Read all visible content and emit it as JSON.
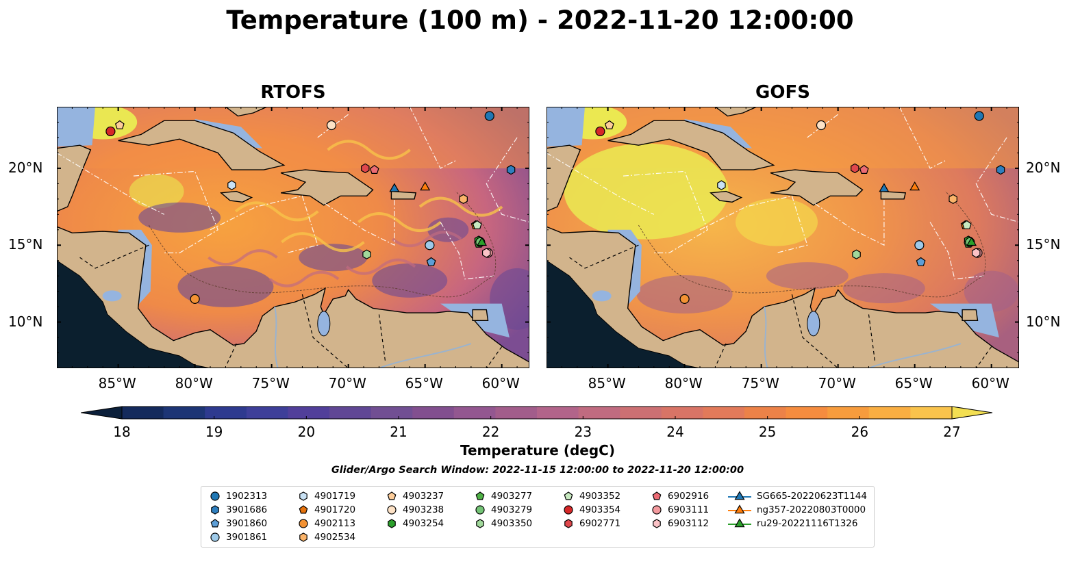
{
  "title": "Temperature (100 m) - 2022-11-20 12:00:00",
  "panels": [
    {
      "name": "RTOFS"
    },
    {
      "name": "GOFS"
    }
  ],
  "axes": {
    "lon_ticks": [
      "85°W",
      "80°W",
      "75°W",
      "70°W",
      "65°W",
      "60°W"
    ],
    "lon_values": [
      -85,
      -80,
      -75,
      -70,
      -65,
      -60
    ],
    "lat_ticks": [
      "20°N",
      "15°N",
      "10°N"
    ],
    "lat_values": [
      20,
      15,
      10
    ],
    "lon_range": [
      -89,
      -58.2
    ],
    "lat_range": [
      7,
      24
    ]
  },
  "colorbar": {
    "label": "Temperature (degC)",
    "ticks": [
      "18",
      "19",
      "20",
      "21",
      "22",
      "23",
      "24",
      "25",
      "26",
      "27"
    ],
    "range": [
      18,
      27
    ],
    "colors": [
      "#0b1f3a",
      "#142a5c",
      "#1d3575",
      "#2e3a8f",
      "#3e3f99",
      "#513f9a",
      "#604795",
      "#714f93",
      "#824f8f",
      "#935790",
      "#a25d8b",
      "#b2648a",
      "#c06b80",
      "#cc7073",
      "#d87466",
      "#e27a5a",
      "#ec8248",
      "#f58c3f",
      "#f79c3d",
      "#f9ae42",
      "#f9c34c",
      "#f3df52"
    ]
  },
  "search_window": "Glider/Argo Search Window: 2022-11-15 12:00:00 to 2022-11-20 12:00:00",
  "legend": [
    {
      "label": "1902313",
      "shape": "circle",
      "color": "#1f77b4"
    },
    {
      "label": "3901686",
      "shape": "hexagon",
      "color": "#2f7fbf"
    },
    {
      "label": "3901860",
      "shape": "pentagon",
      "color": "#5d9ed6"
    },
    {
      "label": "3901861",
      "shape": "circle",
      "color": "#9ecae9"
    },
    {
      "label": "4901719",
      "shape": "hexagon",
      "color": "#c9e2f5"
    },
    {
      "label": "4901720",
      "shape": "pentagon",
      "color": "#e6730d"
    },
    {
      "label": "4902113",
      "shape": "circle",
      "color": "#f39234"
    },
    {
      "label": "4902534",
      "shape": "hexagon",
      "color": "#fbb46a"
    },
    {
      "label": "4903237",
      "shape": "pentagon",
      "color": "#fdcd9a"
    },
    {
      "label": "4903238",
      "shape": "circle",
      "color": "#fde2c6"
    },
    {
      "label": "4903254",
      "shape": "hexagon",
      "color": "#2ca02c"
    },
    {
      "label": "4903277",
      "shape": "pentagon",
      "color": "#4eb045"
    },
    {
      "label": "4903279",
      "shape": "circle",
      "color": "#74c476"
    },
    {
      "label": "4903350",
      "shape": "hexagon",
      "color": "#a1d99b"
    },
    {
      "label": "4903352",
      "shape": "pentagon",
      "color": "#c7e9c0"
    },
    {
      "label": "4903354",
      "shape": "circle",
      "color": "#d62728"
    },
    {
      "label": "6902771",
      "shape": "hexagon",
      "color": "#e0474c"
    },
    {
      "label": "6902916",
      "shape": "pentagon",
      "color": "#ec6b74"
    },
    {
      "label": "6903111",
      "shape": "circle",
      "color": "#f39a9e"
    },
    {
      "label": "6903112",
      "shape": "hexagon",
      "color": "#fbc2c6"
    },
    {
      "label": "SG665-20220623T1144",
      "shape": "triangle-line",
      "color": "#1f77b4"
    },
    {
      "label": "ng357-20220803T0000",
      "shape": "triangle-line",
      "color": "#ff7f0e"
    },
    {
      "label": "ru29-20221116T1326",
      "shape": "triangle-line",
      "color": "#2ca02c"
    }
  ],
  "markers": [
    {
      "id": "1902313",
      "lon": -60.8,
      "lat": 23.4
    },
    {
      "id": "3901686",
      "lon": -59.4,
      "lat": 19.9
    },
    {
      "id": "3901860",
      "lon": -64.6,
      "lat": 13.9
    },
    {
      "id": "3901861",
      "lon": -64.7,
      "lat": 15.0
    },
    {
      "id": "4901719",
      "lon": -77.6,
      "lat": 18.9
    },
    {
      "id": "4901720",
      "lon": -61.7,
      "lat": 16.3
    },
    {
      "id": "4902113",
      "lon": -80.0,
      "lat": 11.5
    },
    {
      "id": "4902534",
      "lon": -62.5,
      "lat": 18.0
    },
    {
      "id": "4903237",
      "lon": -84.9,
      "lat": 22.8
    },
    {
      "id": "4903238",
      "lon": -71.1,
      "lat": 22.8
    },
    {
      "id": "4903254",
      "lon": -61.5,
      "lat": 15.3
    },
    {
      "id": "4903277",
      "lon": -61.5,
      "lat": 15.1
    },
    {
      "id": "4903279",
      "lon": -61.4,
      "lat": 15.2
    },
    {
      "id": "4903350",
      "lon": -68.8,
      "lat": 14.4
    },
    {
      "id": "4903352",
      "lon": -61.6,
      "lat": 16.3
    },
    {
      "id": "4903354",
      "lon": -85.5,
      "lat": 22.4
    },
    {
      "id": "6902771",
      "lon": -68.9,
      "lat": 20.0
    },
    {
      "id": "6902916",
      "lon": -68.3,
      "lat": 19.9
    },
    {
      "id": "6903111",
      "lon": -60.9,
      "lat": 14.5
    },
    {
      "id": "6903112",
      "lon": -61.0,
      "lat": 14.5
    },
    {
      "id": "SG665-20220623T1144",
      "lon": -67.0,
      "lat": 18.7
    },
    {
      "id": "ng357-20220803T0000",
      "lon": -65.0,
      "lat": 18.8
    },
    {
      "id": "ru29-20221116T1326",
      "lon": -61.3,
      "lat": 15.2
    }
  ]
}
